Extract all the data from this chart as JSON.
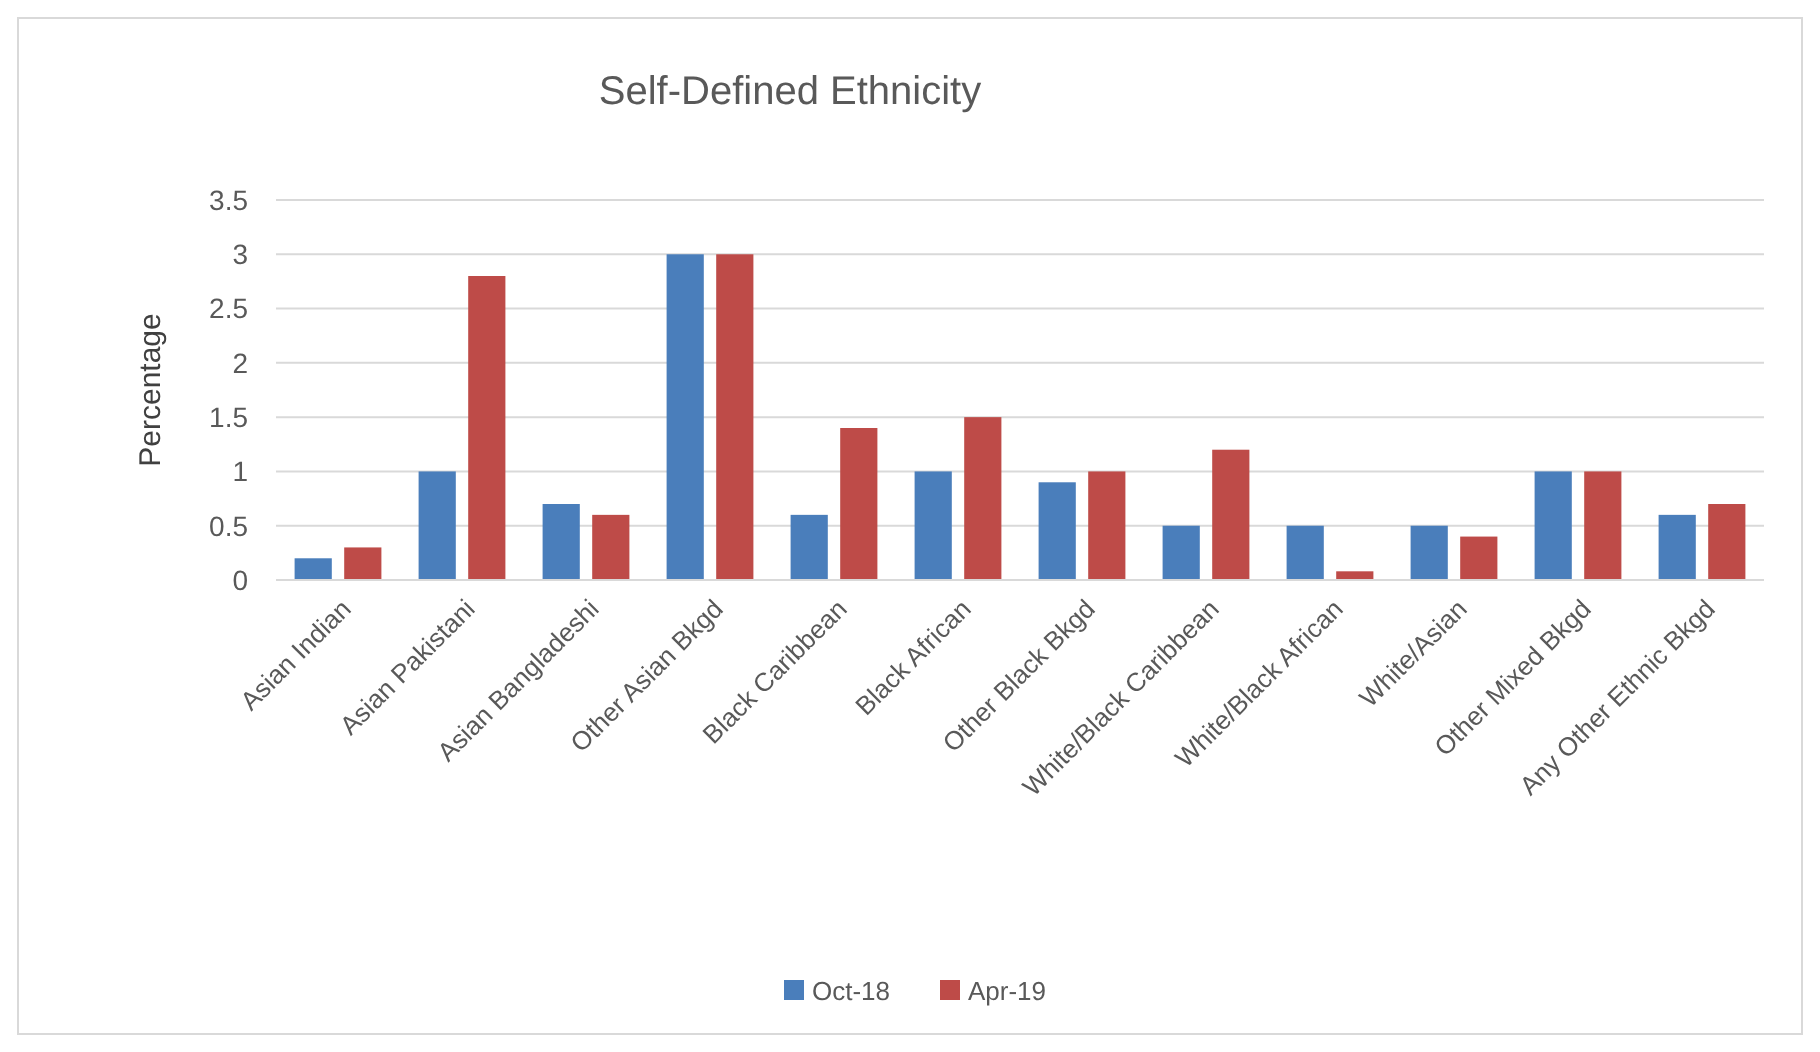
{
  "chart_data": {
    "type": "bar",
    "title": "Self-Defined Ethnicity",
    "ylabel": "Percentage",
    "categories": [
      "Asian Indian",
      "Asian Pakistani",
      "Asian Bangladeshi",
      "Other Asian Bkgd",
      "Black Caribbean",
      "Black African",
      "Other Black Bkgd",
      "White/Black Caribbean",
      "White/Black African",
      "White/Asian",
      "Other Mixed Bkgd",
      "Any Other Ethnic Bkgd"
    ],
    "series": [
      {
        "name": "Oct-18",
        "color": "#4a7ebb",
        "values": [
          0.2,
          1,
          0.7,
          3,
          0.6,
          1,
          0.9,
          0.5,
          0.5,
          0.5,
          1,
          0.6
        ]
      },
      {
        "name": "Apr-19",
        "color": "#be4b48",
        "values": [
          0.3,
          2.8,
          0.6,
          3,
          1.4,
          1.5,
          1,
          1.2,
          0.08,
          0.4,
          1,
          0.7
        ]
      }
    ],
    "ylim": [
      0,
      3.5
    ],
    "yticks": [
      0,
      0.5,
      1,
      1.5,
      2,
      2.5,
      3,
      3.5
    ],
    "grid": "y",
    "legend": "bottom"
  }
}
